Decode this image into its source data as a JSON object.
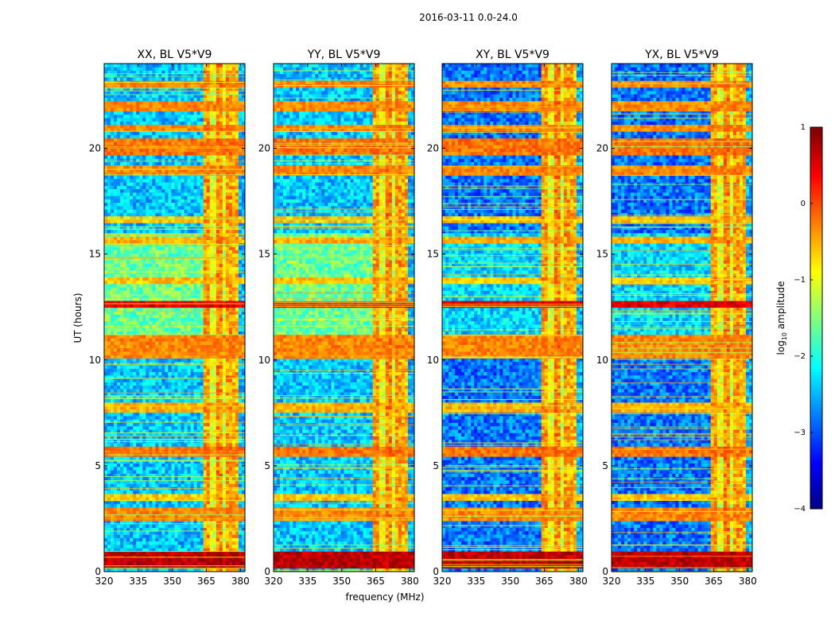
{
  "chart_data": {
    "type": "heatmap",
    "suptitle": "2016-03-11 0.0-24.0",
    "xlabel": "frequency (MHz)",
    "ylabel": "UT (hours)",
    "xlim": [
      320,
      382
    ],
    "ylim": [
      0,
      24
    ],
    "xticks": [
      320,
      335,
      350,
      365,
      380
    ],
    "yticks": [
      0,
      5,
      10,
      15,
      20
    ],
    "colorbar": {
      "label": "log10 amplitude",
      "label_main": "log",
      "label_sub": "10",
      "label_tail": " amplitude",
      "range": [
        -4,
        1
      ],
      "ticks": [
        1,
        0,
        -1,
        -2,
        -3,
        -4
      ],
      "tick_labels": [
        "1",
        "0",
        "−1",
        "−2",
        "−3",
        "−4"
      ],
      "colormap": "jet"
    },
    "panels": [
      {
        "title": "XX, BL V5*V9",
        "quiet_low_level": -2.4,
        "quiet_mid_span_hours": [
          11,
          16
        ],
        "quiet_mid_level": -1.6
      },
      {
        "title": "YY, BL V5*V9",
        "quiet_low_level": -2.4,
        "quiet_mid_span_hours": [
          11,
          16
        ],
        "quiet_mid_level": -1.6
      },
      {
        "title": "XY, BL V5*V9",
        "quiet_low_level": -2.8,
        "quiet_mid_span_hours": [
          11,
          16
        ],
        "quiet_mid_level": -2.3
      },
      {
        "title": "YX, BL V5*V9",
        "quiet_low_level": -2.8,
        "quiet_mid_span_hours": [
          11,
          16
        ],
        "quiet_mid_level": -2.3
      }
    ],
    "rfi_bands_mhz": [
      {
        "from": 364,
        "to": 367,
        "level": -0.4
      },
      {
        "from": 367,
        "to": 369,
        "level": -1.0
      },
      {
        "from": 369,
        "to": 372,
        "level": -0.3
      },
      {
        "from": 372,
        "to": 373.5,
        "level": -1.1
      },
      {
        "from": 373.5,
        "to": 376,
        "level": -0.4
      },
      {
        "from": 376,
        "to": 377,
        "level": -1.2
      },
      {
        "from": 377,
        "to": 379.5,
        "level": -0.5
      },
      {
        "from": 379.5,
        "to": 382,
        "level": -2.5
      }
    ],
    "rfi_hours": [
      {
        "t0": 0.3,
        "t1": 0.9,
        "level": 0.7
      },
      {
        "t0": 2.5,
        "t1": 2.9,
        "level": -0.3
      },
      {
        "t0": 3.4,
        "t1": 3.6,
        "level": -0.6
      },
      {
        "t0": 5.6,
        "t1": 5.9,
        "level": -0.2
      },
      {
        "t0": 7.6,
        "t1": 7.9,
        "level": -0.5
      },
      {
        "t0": 10.2,
        "t1": 11.1,
        "level": -0.3
      },
      {
        "t0": 12.6,
        "t1": 12.8,
        "level": 0.5
      },
      {
        "t0": 13.6,
        "t1": 13.8,
        "level": -0.6
      },
      {
        "t0": 15.6,
        "t1": 15.8,
        "level": -0.5
      },
      {
        "t0": 16.6,
        "t1": 16.8,
        "level": -0.6
      },
      {
        "t0": 18.8,
        "t1": 19.1,
        "level": -0.3
      },
      {
        "t0": 19.8,
        "t1": 20.4,
        "level": -0.2
      },
      {
        "t0": 20.8,
        "t1": 21.0,
        "level": -0.3
      },
      {
        "t0": 21.8,
        "t1": 22.1,
        "level": -0.3
      },
      {
        "t0": 23.0,
        "t1": 23.2,
        "level": -0.3
      }
    ]
  }
}
